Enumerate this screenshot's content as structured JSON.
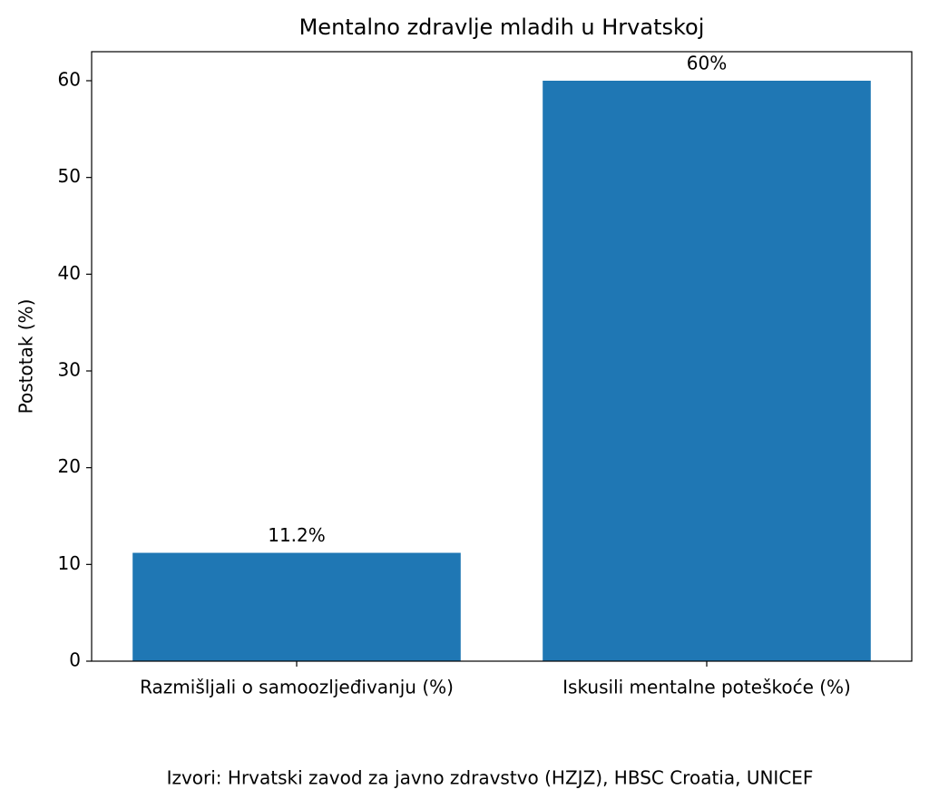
{
  "chart_data": {
    "type": "bar",
    "title": "Mentalno zdravlje mladih u Hrvatskoj",
    "ylabel": "Postotak (%)",
    "categories": [
      "Razmišljali o samoozljeđivanju (%)",
      "Iskusili mentalne poteškoće (%)"
    ],
    "values": [
      11.2,
      60
    ],
    "value_labels": [
      "11.2%",
      "60%"
    ],
    "color": "#1f77b4",
    "ylim": [
      0,
      63
    ],
    "yticks": [
      0,
      10,
      20,
      30,
      40,
      50,
      60
    ],
    "grid": false,
    "source": "Izvori: Hrvatski zavod za javno zdravstvo (HZJZ), HBSC Croatia, UNICEF"
  }
}
